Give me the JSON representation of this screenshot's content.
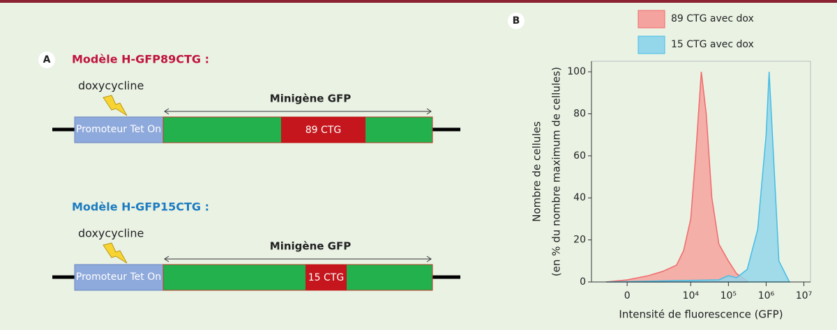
{
  "panel_a": {
    "label": "A",
    "models": [
      {
        "title": "Modèle H-GFP89CTG :",
        "inducer": "doxycycline",
        "minigene": "Minigène GFP",
        "promoter": "Promoteur Tet On",
        "repeat": "89 CTG"
      },
      {
        "title": "Modèle H-GFP15CTG :",
        "inducer": "doxycycline",
        "minigene": "Minigène GFP",
        "promoter": "Promoteur Tet On",
        "repeat": "15 CTG"
      }
    ]
  },
  "panel_b": {
    "label": "B"
  },
  "chart_data": {
    "type": "area",
    "xlabel": "Intensité de fluorescence (GFP)",
    "ylabel": [
      "Nombre de cellules",
      "(en % du nombre maximum de cellules)"
    ],
    "xscale": "biexponential",
    "xlim": [
      -1800,
      15000000
    ],
    "xticks": [
      0,
      {
        "value": 10000,
        "label": "10⁴"
      },
      {
        "value": 100000,
        "label": "10⁵"
      },
      {
        "value": 1000000,
        "label": "10⁶"
      },
      {
        "value": 10000000,
        "label": "10⁷"
      }
    ],
    "ylim": [
      0,
      105
    ],
    "yticks": [
      0,
      20,
      40,
      60,
      80,
      100
    ],
    "legend": "top",
    "series": [
      {
        "name": "89 CTG avec dox",
        "color": "#f06a6a",
        "fill": "#f4a39e",
        "x": [
          -695,
          0,
          695,
          1760,
          4200,
          6500,
          10000,
          13500,
          19100,
          25800,
          36400,
          56000,
          100000,
          164000,
          315000
        ],
        "values": [
          0,
          1,
          3,
          5,
          8,
          15,
          30,
          60,
          100,
          80,
          40,
          18,
          10,
          4,
          0.5
        ]
      },
      {
        "name": "15 CTG avec dox",
        "color": "#43bde6",
        "fill": "#94d6ea",
        "x": [
          -695,
          1760,
          56000,
          100000,
          164000,
          315000,
          597000,
          1000000,
          1200000,
          1420000,
          2180000,
          4150000
        ],
        "values": [
          0,
          0.5,
          1,
          3,
          2,
          6,
          25,
          70,
          100,
          75,
          10,
          0
        ]
      }
    ]
  }
}
